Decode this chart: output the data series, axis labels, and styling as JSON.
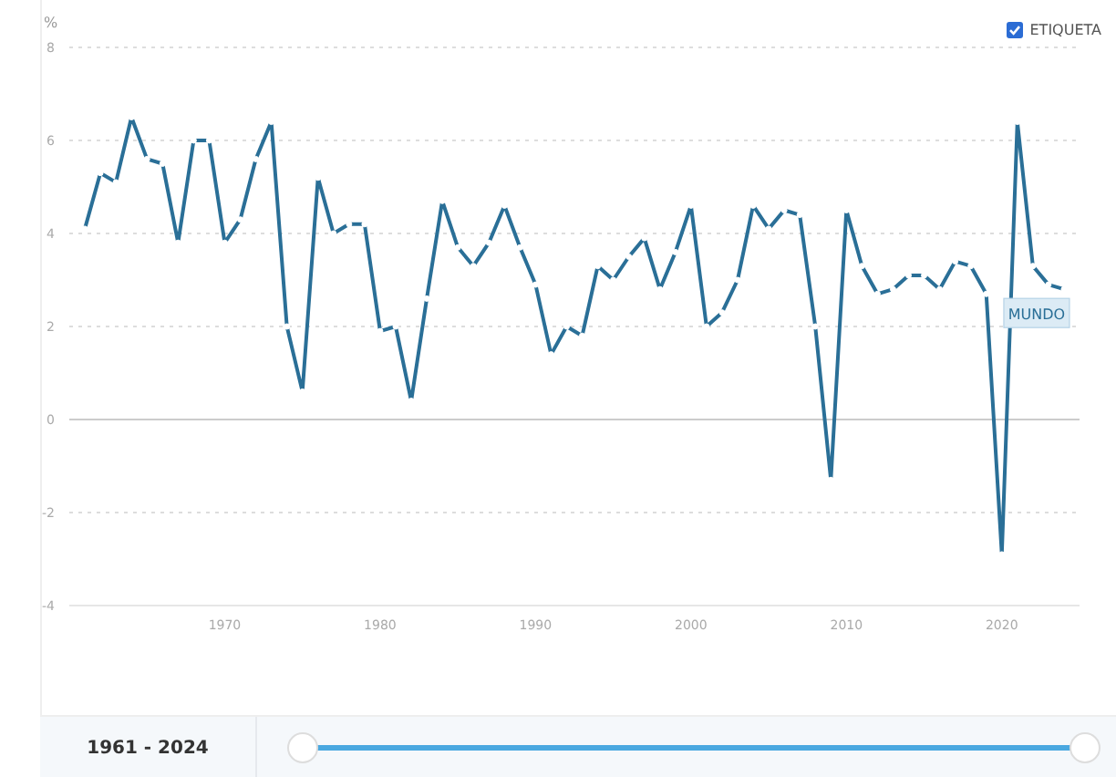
{
  "chart_data": {
    "type": "line",
    "ylabel": "%",
    "x": [
      1961,
      1962,
      1963,
      1964,
      1965,
      1966,
      1967,
      1968,
      1969,
      1970,
      1971,
      1972,
      1973,
      1974,
      1975,
      1976,
      1977,
      1978,
      1979,
      1980,
      1981,
      1982,
      1983,
      1984,
      1985,
      1986,
      1987,
      1988,
      1989,
      1990,
      1991,
      1992,
      1993,
      1994,
      1995,
      1996,
      1997,
      1998,
      1999,
      2000,
      2001,
      2002,
      2003,
      2004,
      2005,
      2006,
      2007,
      2008,
      2009,
      2010,
      2011,
      2012,
      2013,
      2014,
      2015,
      2016,
      2017,
      2018,
      2019,
      2020,
      2021,
      2022,
      2023,
      2024
    ],
    "series": [
      {
        "name": "MUNDO",
        "color": "#2a6f97",
        "values": [
          4.1,
          5.3,
          5.1,
          6.5,
          5.6,
          5.5,
          3.8,
          6.0,
          6.0,
          3.8,
          4.3,
          5.6,
          6.4,
          2.0,
          0.6,
          5.2,
          4.0,
          4.2,
          4.2,
          1.9,
          2.0,
          0.4,
          2.6,
          4.7,
          3.7,
          3.3,
          3.8,
          4.6,
          3.7,
          2.9,
          1.4,
          2.0,
          1.8,
          3.3,
          3.0,
          3.5,
          3.9,
          2.8,
          3.6,
          4.6,
          2.0,
          2.3,
          3.0,
          4.6,
          4.1,
          4.5,
          4.4,
          2.0,
          -1.3,
          4.5,
          3.3,
          2.7,
          2.8,
          3.1,
          3.1,
          2.8,
          3.4,
          3.3,
          2.7,
          -2.9,
          6.4,
          3.3,
          2.9,
          2.8
        ]
      }
    ],
    "xlim": [
      1960,
      2025
    ],
    "xticks": [
      1970,
      1980,
      1990,
      2000,
      2010,
      2020
    ],
    "ylim": [
      -4,
      8
    ],
    "yticks": [
      -4,
      -2,
      0,
      2,
      4,
      6,
      8
    ],
    "grid": "y",
    "marker": "circle",
    "line_style": "solid",
    "legend": "top right",
    "ref_lines": [
      {
        "axis": "y",
        "value": 0,
        "color": "#cccccc"
      }
    ],
    "annotations": [
      "ETIQUETA",
      "1961 - 2024"
    ]
  }
}
